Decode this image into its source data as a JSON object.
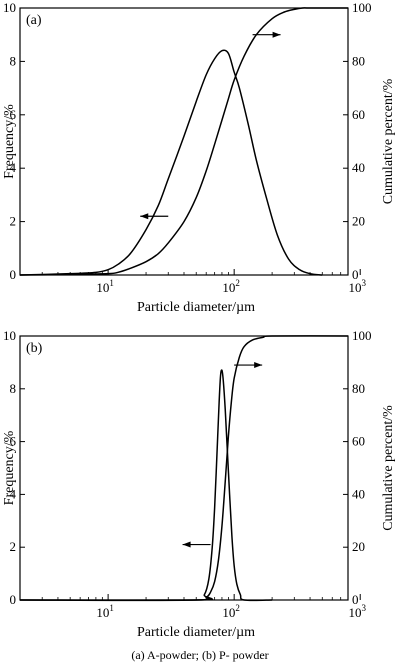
{
  "caption": "(a) A-powder; (b) P-  powder",
  "chart_data": [
    {
      "type": "line",
      "panel_label": "(a)",
      "xlabel": "Particle diameter/µm",
      "ylabel_left": "Frequency/%",
      "ylabel_right": "Cumulative percent/%",
      "x_scale": "log",
      "xlim": [
        2,
        800
      ],
      "xticks": [
        {
          "value": 10,
          "base": "10",
          "exp": "1"
        },
        {
          "value": 100,
          "base": "10",
          "exp": "2"
        },
        {
          "value": 1000,
          "base": "10",
          "exp": "3"
        }
      ],
      "ylim_left": [
        0,
        10
      ],
      "yticks_left": [
        "0",
        "2",
        "4",
        "6",
        "8",
        "10"
      ],
      "ylim_right": [
        0,
        100
      ],
      "yticks_right": [
        "0",
        "20",
        "40",
        "60",
        "80",
        "100"
      ],
      "series": [
        {
          "axis": "left",
          "x": [
            2,
            5,
            8,
            10,
            12,
            15,
            20,
            25,
            30,
            40,
            50,
            60,
            70,
            80,
            90,
            100,
            110,
            130,
            150,
            180,
            220,
            270,
            330,
            400,
            500
          ],
          "y": [
            0,
            0.05,
            0.1,
            0.2,
            0.4,
            0.8,
            1.7,
            2.6,
            3.6,
            5.2,
            6.5,
            7.5,
            8.1,
            8.4,
            8.3,
            7.6,
            7.0,
            5.6,
            4.3,
            2.9,
            1.5,
            0.6,
            0.2,
            0.05,
            0
          ]
        },
        {
          "axis": "right",
          "x": [
            2,
            5,
            10,
            12,
            15,
            20,
            25,
            30,
            40,
            50,
            60,
            70,
            80,
            90,
            100,
            120,
            150,
            200,
            250,
            300,
            350,
            400,
            800
          ],
          "y": [
            0,
            0.2,
            0.5,
            1,
            2.5,
            5,
            8,
            12,
            20,
            29,
            39,
            49,
            58,
            66,
            73,
            82,
            90,
            96,
            98.5,
            99.5,
            100,
            100,
            100
          ]
        }
      ],
      "annotations": [
        {
          "type": "arrow",
          "direction": "left",
          "at_x": 30,
          "at_y": 2.2,
          "axis": "left"
        },
        {
          "type": "arrow",
          "direction": "right",
          "at_x": 140,
          "at_y": 9.0,
          "axis": "left"
        }
      ]
    },
    {
      "type": "line",
      "panel_label": "(b)",
      "xlabel": "Particle diameter/µm",
      "ylabel_left": "Frequency/%",
      "ylabel_right": "Cumulative percent/%",
      "x_scale": "log",
      "xlim": [
        2,
        800
      ],
      "xticks": [
        {
          "value": 10,
          "base": "10",
          "exp": "1"
        },
        {
          "value": 100,
          "base": "10",
          "exp": "2"
        },
        {
          "value": 1000,
          "base": "10",
          "exp": "3"
        }
      ],
      "ylim_left": [
        0,
        10
      ],
      "yticks_left": [
        "0",
        "2",
        "4",
        "6",
        "8",
        "10"
      ],
      "ylim_right": [
        0,
        100
      ],
      "yticks_right": [
        "0",
        "20",
        "40",
        "60",
        "80",
        "100"
      ],
      "series": [
        {
          "axis": "left",
          "x": [
            2,
            50,
            58,
            63,
            67,
            70,
            73,
            76,
            78,
            80,
            82,
            85,
            88,
            92,
            96,
            100,
            105,
            112,
            120,
            200
          ],
          "y": [
            0,
            0,
            0.2,
            0.8,
            2.0,
            3.5,
            5.5,
            7.5,
            8.5,
            8.7,
            8.3,
            7.2,
            5.8,
            4.0,
            2.4,
            1.3,
            0.6,
            0.2,
            0,
            0
          ]
        },
        {
          "axis": "right",
          "x": [
            2,
            50,
            60,
            65,
            70,
            75,
            80,
            85,
            90,
            95,
            100,
            110,
            120,
            140,
            170,
            200,
            800
          ],
          "y": [
            0,
            0,
            1,
            3,
            7,
            15,
            28,
            45,
            62,
            75,
            84,
            92,
            96,
            98.5,
            99.5,
            100,
            100
          ]
        }
      ],
      "annotations": [
        {
          "type": "arrow",
          "direction": "left",
          "at_x": 65,
          "at_y": 2.1,
          "axis": "left"
        },
        {
          "type": "arrow",
          "direction": "right",
          "at_x": 100,
          "at_y": 8.9,
          "axis": "left"
        }
      ]
    }
  ]
}
